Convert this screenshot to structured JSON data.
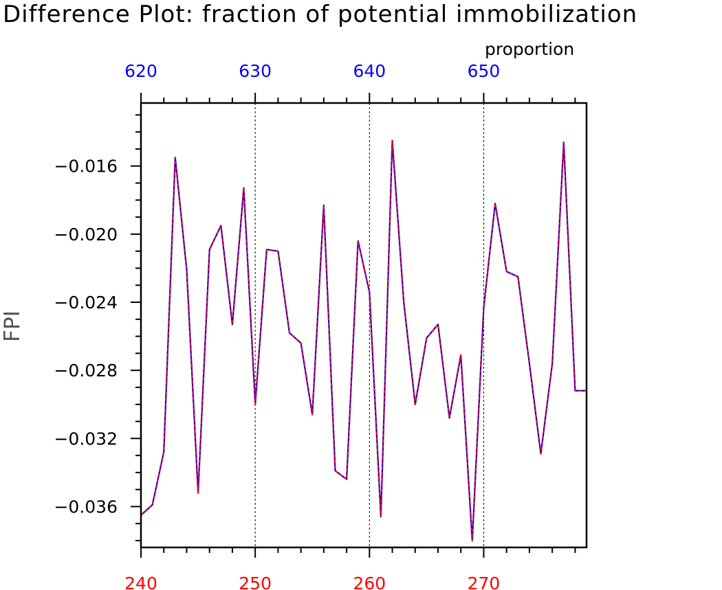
{
  "chart_data": {
    "type": "line",
    "title": "Difference Plot: fraction of potential immobilization",
    "units_label": "proportion",
    "ylabel": "FPI",
    "xlabel": "",
    "xlim": [
      240,
      279
    ],
    "ylim": [
      -0.0384,
      -0.0123
    ],
    "bottom_axis": {
      "color": "#ff0000",
      "ticks": [
        240,
        250,
        260,
        270
      ],
      "tick_labels": [
        "240",
        "250",
        "260",
        "270"
      ]
    },
    "top_axis": {
      "color": "#0000ff",
      "ticks": [
        620,
        630,
        640,
        650
      ],
      "tick_labels": [
        "620",
        "630",
        "640",
        "650"
      ],
      "offset_from_bottom": 380
    },
    "yticks": [
      -0.016,
      -0.02,
      -0.024,
      -0.028,
      -0.032,
      -0.036
    ],
    "ytick_labels": [
      "−0.016",
      "−0.020",
      "−0.024",
      "−0.028",
      "−0.032",
      "−0.036"
    ],
    "gridlines_x": [
      250,
      260,
      270
    ],
    "colors": {
      "series_a": "#0000ff",
      "series_b": "#ff0000"
    },
    "x": [
      240,
      241,
      242,
      243,
      244,
      245,
      246,
      247,
      248,
      249,
      250,
      251,
      252,
      253,
      254,
      255,
      256,
      257,
      258,
      259,
      260,
      261,
      262,
      263,
      264,
      265,
      266,
      267,
      268,
      269,
      270,
      271,
      272,
      273,
      274,
      275,
      276,
      277,
      278,
      279
    ],
    "series": [
      {
        "color": "#0000ff",
        "style": "solid",
        "values": [
          -0.0365,
          -0.0359,
          -0.0328,
          -0.0155,
          -0.0221,
          -0.0352,
          -0.0209,
          -0.0195,
          -0.0253,
          -0.0173,
          -0.03,
          -0.0209,
          -0.021,
          -0.0258,
          -0.0264,
          -0.0306,
          -0.0183,
          -0.0339,
          -0.0344,
          -0.0204,
          -0.0234,
          -0.0366,
          -0.0145,
          -0.024,
          -0.03,
          -0.0261,
          -0.0253,
          -0.0308,
          -0.0271,
          -0.038,
          -0.0243,
          -0.0182,
          -0.0222,
          -0.0225,
          -0.0276,
          -0.0329,
          -0.0276,
          -0.0146,
          -0.0292,
          -0.0292
        ]
      },
      {
        "color": "#ff0000",
        "style": "dashed",
        "values": [
          -0.0365,
          -0.0359,
          -0.0328,
          -0.0155,
          -0.0221,
          -0.0352,
          -0.0209,
          -0.0195,
          -0.0253,
          -0.0173,
          -0.03,
          -0.0209,
          -0.021,
          -0.0258,
          -0.0264,
          -0.0306,
          -0.0183,
          -0.0339,
          -0.0344,
          -0.0204,
          -0.0234,
          -0.0366,
          -0.0145,
          -0.024,
          -0.03,
          -0.0261,
          -0.0253,
          -0.0308,
          -0.0271,
          -0.038,
          -0.0243,
          -0.0182,
          -0.0222,
          -0.0225,
          -0.0276,
          -0.0329,
          -0.0276,
          -0.0146,
          -0.0292,
          -0.0292
        ]
      }
    ]
  }
}
